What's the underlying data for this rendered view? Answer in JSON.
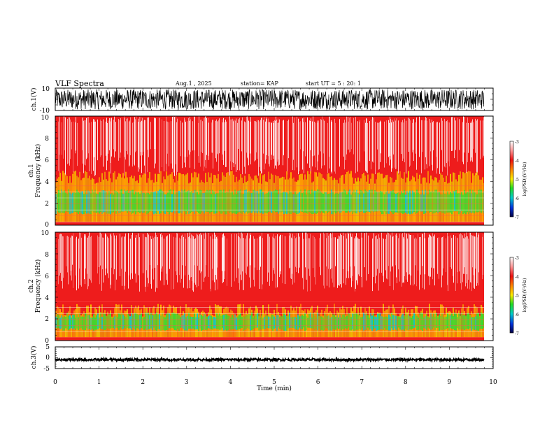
{
  "header": {
    "title": "VLF Spectra",
    "date": "Aug.1 , 2025",
    "station": "station= KAP",
    "start": "start UT = 5 : 20: 1"
  },
  "colors": {
    "spec_red": "#ee1c1c",
    "spec_yellow": "#f2c200",
    "spec_green": "#33dd33",
    "spec_white": "#ffffff"
  },
  "chart_data": [
    {
      "type": "line",
      "title": "VLF Spectra",
      "ylabel": "ch.1(V)",
      "ylim": [
        -10,
        10
      ],
      "yticks": [
        "10",
        "-10"
      ],
      "xlim": [
        0,
        10
      ],
      "xlabel": "Time (min)"
    },
    {
      "type": "heatmap",
      "ylabel_top": "ch.1",
      "ylabel": "Frequency (kHz)",
      "ylim": [
        0,
        10
      ],
      "yticks": [
        "0",
        "2",
        "4",
        "6",
        "8",
        "10"
      ],
      "xlim": [
        0,
        10
      ],
      "colorbar": {
        "label": "log(PSD)(V²/Hz)",
        "range": [
          -7,
          -3
        ],
        "ticks": [
          "-3",
          "-4",
          "-5",
          "-6",
          "-7"
        ]
      }
    },
    {
      "type": "heatmap",
      "ylabel_top": "ch.2",
      "ylabel": "Frequency (kHz)",
      "ylim": [
        0,
        10
      ],
      "yticks": [
        "0",
        "2",
        "4",
        "6",
        "8",
        "10"
      ],
      "xlim": [
        0,
        10
      ],
      "colorbar": {
        "label": "log(PSD)(V²/Hz)",
        "range": [
          -7,
          -3
        ],
        "ticks": [
          "-3",
          "-4",
          "-5",
          "-6",
          "-7"
        ]
      }
    },
    {
      "type": "line",
      "ylabel": "ch.3(V)",
      "ylim": [
        -5,
        5
      ],
      "yticks": [
        "5",
        "0",
        "-5"
      ],
      "xlim": [
        0,
        10
      ],
      "xlabel": "Time (min)",
      "xticks": [
        "0",
        "1",
        "2",
        "3",
        "4",
        "5",
        "6",
        "7",
        "8",
        "9",
        "10"
      ]
    }
  ]
}
